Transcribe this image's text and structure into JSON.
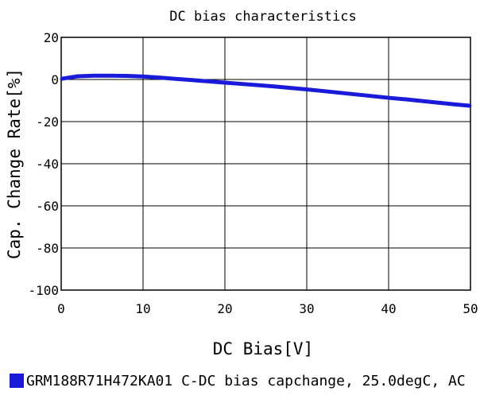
{
  "chart_data": {
    "type": "line",
    "title": "DC bias characteristics",
    "xlabel": "DC Bias[V]",
    "ylabel": "Cap. Change Rate[%]",
    "xlim": [
      0,
      50
    ],
    "ylim": [
      -100,
      20
    ],
    "x_ticks": [
      0,
      10,
      20,
      30,
      40,
      50
    ],
    "y_ticks": [
      20,
      0,
      -20,
      -40,
      -60,
      -80,
      -100
    ],
    "x_tick_labels": [
      "0",
      "10",
      "20",
      "30",
      "40",
      "50"
    ],
    "y_tick_labels": [
      "20",
      "0",
      "-20",
      "-40",
      "-60",
      "-80",
      "-100"
    ],
    "grid": true,
    "legend_position": "bottom",
    "series": [
      {
        "name": "GRM188R71H472KA01 C-DC bias capchange, 25.0degC, AC",
        "color": "#1a1adb",
        "x": [
          0,
          2,
          4,
          6,
          8,
          10,
          12,
          14,
          16,
          18,
          20,
          22,
          24,
          26,
          28,
          30,
          32,
          34,
          36,
          38,
          40,
          42,
          44,
          46,
          48,
          50
        ],
        "y": [
          0.3,
          1.5,
          1.8,
          1.8,
          1.7,
          1.4,
          0.9,
          0.3,
          -0.3,
          -0.9,
          -1.5,
          -2.1,
          -2.7,
          -3.3,
          -4.0,
          -4.7,
          -5.5,
          -6.3,
          -7.1,
          -7.9,
          -8.7,
          -9.4,
          -10.2,
          -11.0,
          -11.8,
          -12.5
        ]
      }
    ]
  }
}
